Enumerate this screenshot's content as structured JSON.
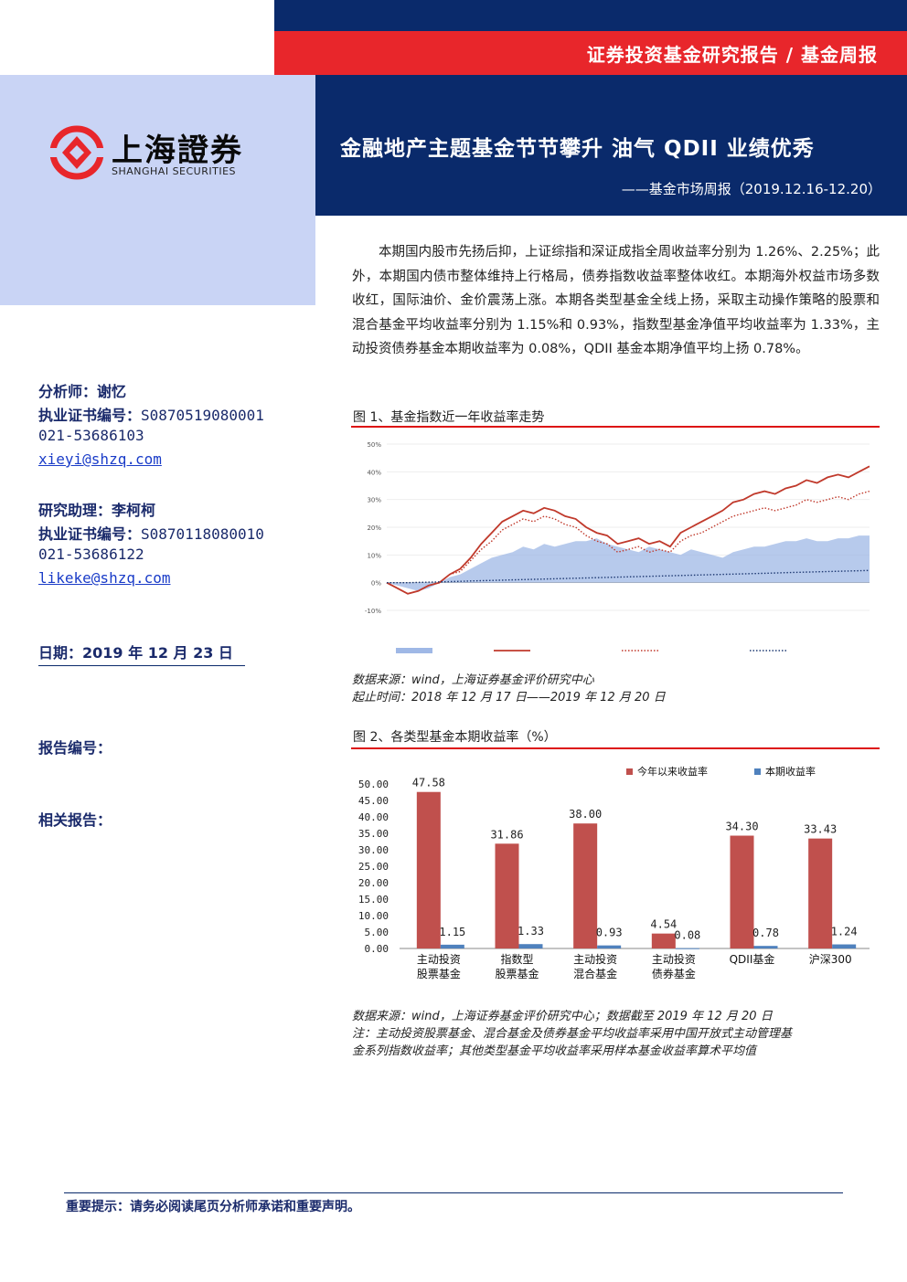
{
  "header": {
    "category": "证券投资基金研究报告 / 基金周报",
    "title": "金融地产主题基金节节攀升  油气 QDII 业绩优秀",
    "subtitle": "——基金市场周报（2019.12.16-12.20）"
  },
  "logo": {
    "name_cn": "上海證券",
    "name_en": "SHANGHAI SECURITIES"
  },
  "summary": "本期国内股市先扬后抑，上证综指和深证成指全周收益率分别为 1.26%、2.25%；此外，本期国内债市整体维持上行格局，债券指数收益率整体收红。本期海外权益市场多数收红，国际油价、金价震荡上涨。本期各类型基金全线上扬，采取主动操作策略的股票和混合基金平均收益率分别为 1.15%和 0.93%，指数型基金净值平均收益率为 1.33%，主动投资债券基金本期收益率为 0.08%，QDII 基金本期净值平均上扬 0.78%。",
  "sidebar": {
    "analyst_label": "分析师：",
    "analyst_name": "谢忆",
    "cert_label": "执业证书编号：",
    "analyst_cert": "S0870519080001",
    "analyst_phone": "021-53686103",
    "analyst_email": "xieyi@shzq.com",
    "assistant_label": "研究助理：",
    "assistant_name": "李柯柯",
    "assistant_cert": "S0870118080010",
    "assistant_phone": "021-53686122",
    "assistant_email": "likeke@shzq.com",
    "date_label": "日期：",
    "date": "2019 年 12 月 23 日",
    "report_no_label": "报告编号：",
    "related_label": "相关报告："
  },
  "figure1": {
    "title": "图 1、基金指数近一年收益率走势",
    "source": "数据来源：wind，上海证券基金评价研究中心",
    "period": "起止时间：2018 年 12 月 17 日——2019 年 12 月 20 日"
  },
  "figure2": {
    "title": "图 2、各类型基金本期收益率（%）",
    "source": "数据来源：wind，上海证券基金评价研究中心；数据截至 2019 年 12 月 20 日",
    "note_line1": "注：主动投资股票基金、混合基金及债券基金平均收益率采用中国开放式主动管理基",
    "note_line2": "金系列指数收益率；其他类型基金平均收益率采用样本基金收益率算术平均值"
  },
  "footer": {
    "notice": "重要提示：请务必阅读尾页分析师承诺和重要声明。"
  },
  "colors": {
    "navy": "#0a2a6b",
    "red": "#e8262b",
    "panel": "#c9d4f5",
    "bar_ytd": "#c0504d",
    "bar_week": "#4f81bd"
  },
  "chart_data": [
    {
      "type": "line",
      "ylim": [
        -10,
        50
      ],
      "y_ticks": [
        "50%",
        "40%",
        "30%",
        "20%",
        "10%",
        "0%",
        "-10%"
      ],
      "series": [
        {
          "style": "area",
          "color": "#9fb8e6",
          "values": [
            0,
            -1,
            -2,
            -3,
            -2,
            0,
            2,
            3,
            5,
            7,
            9,
            10,
            11,
            13,
            12,
            14,
            13,
            14,
            15,
            15,
            16,
            14,
            13,
            12,
            11,
            13,
            12,
            11,
            10,
            12,
            11,
            10,
            9,
            11,
            12,
            13,
            13,
            14,
            15,
            15,
            16,
            15,
            15,
            16,
            16,
            17,
            17
          ]
        },
        {
          "style": "solid",
          "color": "#c0392b",
          "values": [
            0,
            -2,
            -4,
            -3,
            -1,
            0,
            3,
            5,
            9,
            14,
            18,
            22,
            24,
            26,
            25,
            27,
            26,
            24,
            23,
            20,
            18,
            17,
            14,
            15,
            16,
            14,
            15,
            13,
            18,
            20,
            22,
            24,
            26,
            29,
            30,
            32,
            33,
            32,
            34,
            35,
            37,
            36,
            38,
            39,
            38,
            40,
            42
          ]
        },
        {
          "style": "dotted",
          "color": "#c0392b",
          "values": [
            0,
            -2,
            -4,
            -3,
            -1,
            0,
            3,
            4,
            8,
            12,
            15,
            19,
            21,
            23,
            22,
            24,
            23,
            21,
            20,
            17,
            15,
            14,
            11,
            12,
            13,
            11,
            12,
            11,
            15,
            17,
            18,
            20,
            22,
            24,
            25,
            26,
            27,
            26,
            27,
            28,
            30,
            29,
            30,
            31,
            30,
            32,
            33
          ]
        },
        {
          "style": "dotted",
          "color": "#1f3a73",
          "values": [
            0,
            0,
            0,
            0.1,
            0.2,
            0.3,
            0.4,
            0.5,
            0.6,
            0.7,
            0.8,
            0.9,
            1.0,
            1.1,
            1.2,
            1.3,
            1.4,
            1.5,
            1.6,
            1.7,
            1.8,
            1.9,
            2.0,
            2.1,
            2.2,
            2.3,
            2.4,
            2.5,
            2.6,
            2.7,
            2.8,
            2.9,
            3.0,
            3.1,
            3.2,
            3.3,
            3.4,
            3.5,
            3.6,
            3.7,
            3.8,
            3.9,
            4.0,
            4.1,
            4.2,
            4.3,
            4.4
          ]
        }
      ]
    },
    {
      "type": "bar",
      "categories": [
        "主动投资股票基金",
        "指数型股票基金",
        "主动投资混合基金",
        "主动投资债券基金",
        "QDII基金",
        "沪深300"
      ],
      "category_lines": [
        [
          "主动投资",
          "股票基金"
        ],
        [
          "指数型",
          "股票基金"
        ],
        [
          "主动投资",
          "混合基金"
        ],
        [
          "主动投资",
          "债券基金"
        ],
        [
          "QDII基金",
          ""
        ],
        [
          "沪深300",
          ""
        ]
      ],
      "series": [
        {
          "name": "今年以来收益率",
          "values": [
            47.58,
            31.86,
            38.0,
            4.54,
            34.3,
            33.43
          ],
          "labels": [
            "47.58",
            "31.86",
            "38.00",
            "4.54",
            "34.30",
            "33.43"
          ]
        },
        {
          "name": "本期收益率",
          "values": [
            1.15,
            1.33,
            0.93,
            0.08,
            0.78,
            1.24
          ],
          "labels": [
            "1.15",
            "1.33",
            "0.93",
            "0.08",
            "0.78",
            "1.24"
          ]
        }
      ],
      "ylim": [
        0,
        50
      ],
      "y_ticks": [
        "50.00",
        "45.00",
        "40.00",
        "35.00",
        "30.00",
        "25.00",
        "20.00",
        "15.00",
        "10.00",
        "5.00",
        "0.00"
      ]
    }
  ]
}
